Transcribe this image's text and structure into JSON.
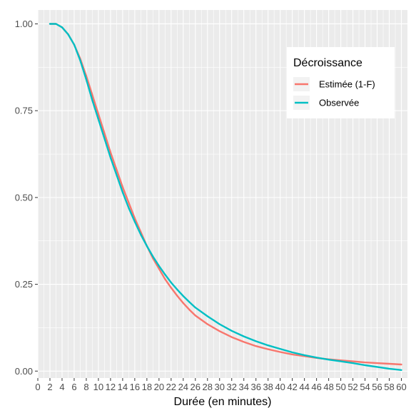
{
  "chart_data": {
    "type": "line",
    "title": "",
    "xlabel": "Durée (en minutes)",
    "ylabel": "",
    "xlim": [
      0,
      61
    ],
    "ylim": [
      -0.02,
      1.04
    ],
    "x_ticks": [
      "0",
      "2",
      "4",
      "6",
      "8",
      "10",
      "12",
      "14",
      "16",
      "18",
      "20",
      "22",
      "24",
      "26",
      "28",
      "30",
      "32",
      "34",
      "36",
      "38",
      "40",
      "42",
      "44",
      "46",
      "48",
      "50",
      "52",
      "54",
      "56",
      "58",
      "60"
    ],
    "y_ticks": [
      "0.00",
      "0.25",
      "0.50",
      "0.75",
      "1.00"
    ],
    "y_tick_values": [
      0,
      0.25,
      0.5,
      0.75,
      1.0
    ],
    "grid": true,
    "legend": {
      "title": "Décroissance",
      "position": "top-right"
    },
    "series": [
      {
        "name": "Estimée (1-F)",
        "color": "#F8766D",
        "x": [
          2,
          3,
          4,
          5,
          6,
          7,
          8,
          9,
          10,
          11,
          12,
          13,
          14,
          15,
          16,
          17,
          18,
          19,
          20,
          21,
          22,
          23,
          24,
          25,
          26,
          28,
          30,
          32,
          34,
          36,
          38,
          40,
          42,
          44,
          46,
          48,
          50,
          52,
          54,
          56,
          58,
          60
        ],
        "values": [
          1.0,
          1.0,
          0.99,
          0.97,
          0.94,
          0.9,
          0.85,
          0.795,
          0.74,
          0.685,
          0.63,
          0.58,
          0.53,
          0.485,
          0.44,
          0.4,
          0.36,
          0.325,
          0.295,
          0.265,
          0.24,
          0.217,
          0.196,
          0.177,
          0.16,
          0.135,
          0.115,
          0.098,
          0.084,
          0.072,
          0.063,
          0.055,
          0.048,
          0.043,
          0.038,
          0.034,
          0.031,
          0.028,
          0.025,
          0.023,
          0.021,
          0.019
        ]
      },
      {
        "name": "Observée",
        "color": "#00BFC4",
        "x": [
          2,
          3,
          4,
          5,
          6,
          7,
          8,
          9,
          10,
          11,
          12,
          13,
          14,
          15,
          16,
          17,
          18,
          19,
          20,
          21,
          22,
          23,
          24,
          25,
          26,
          28,
          30,
          32,
          34,
          36,
          38,
          40,
          42,
          44,
          46,
          48,
          50,
          52,
          54,
          56,
          58,
          60
        ],
        "values": [
          1.0,
          1.0,
          0.99,
          0.97,
          0.94,
          0.895,
          0.84,
          0.78,
          0.725,
          0.67,
          0.615,
          0.565,
          0.515,
          0.47,
          0.43,
          0.393,
          0.36,
          0.33,
          0.303,
          0.278,
          0.255,
          0.235,
          0.216,
          0.199,
          0.183,
          0.158,
          0.135,
          0.116,
          0.1,
          0.086,
          0.074,
          0.064,
          0.054,
          0.046,
          0.039,
          0.033,
          0.028,
          0.023,
          0.017,
          0.012,
          0.007,
          0.003
        ]
      }
    ]
  }
}
